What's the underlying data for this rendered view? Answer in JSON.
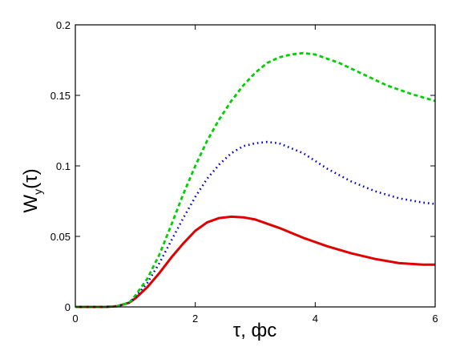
{
  "chart_data": {
    "type": "line",
    "xlabel": "τ, фс",
    "ylabel": "W",
    "ylabel_subscript": "y",
    "ylabel_suffix": "(τ)",
    "xlim": [
      0,
      6
    ],
    "ylim": [
      0,
      0.2
    ],
    "xticks": [
      0,
      2,
      4,
      6
    ],
    "xtick_labels": [
      "0",
      "2",
      "4",
      "6"
    ],
    "yticks": [
      0,
      0.05,
      0.1,
      0.15,
      0.2
    ],
    "ytick_labels": [
      "0",
      "0.05",
      "0.1",
      "0.15",
      "0.2"
    ],
    "grid": false,
    "legend": "none",
    "series": [
      {
        "style": "solid",
        "color": "#e00000",
        "x": [
          0,
          0.5,
          0.7,
          0.9,
          1.0,
          1.2,
          1.4,
          1.6,
          1.8,
          2.0,
          2.2,
          2.4,
          2.6,
          2.8,
          3.0,
          3.4,
          3.8,
          4.2,
          4.6,
          5.0,
          5.4,
          5.8,
          6.0
        ],
        "y": [
          0,
          0,
          0.0005,
          0.003,
          0.006,
          0.014,
          0.024,
          0.035,
          0.045,
          0.054,
          0.06,
          0.063,
          0.064,
          0.0635,
          0.062,
          0.056,
          0.049,
          0.043,
          0.038,
          0.034,
          0.031,
          0.03,
          0.03
        ]
      },
      {
        "style": "dotted",
        "color": "#0000d0",
        "x": [
          0,
          0.5,
          0.7,
          0.9,
          1.0,
          1.2,
          1.4,
          1.6,
          1.8,
          2.0,
          2.2,
          2.4,
          2.6,
          2.8,
          3.0,
          3.2,
          3.4,
          3.8,
          4.2,
          4.6,
          5.0,
          5.4,
          5.8,
          6.0
        ],
        "y": [
          0,
          0,
          0.0005,
          0.003,
          0.007,
          0.017,
          0.031,
          0.047,
          0.063,
          0.078,
          0.091,
          0.101,
          0.109,
          0.114,
          0.116,
          0.117,
          0.116,
          0.109,
          0.098,
          0.089,
          0.082,
          0.077,
          0.074,
          0.073
        ]
      },
      {
        "style": "dashed",
        "color": "#00d000",
        "x": [
          0,
          0.5,
          0.7,
          0.9,
          1.0,
          1.2,
          1.4,
          1.6,
          1.8,
          2.0,
          2.2,
          2.4,
          2.6,
          2.8,
          3.0,
          3.2,
          3.4,
          3.6,
          3.8,
          4.0,
          4.4,
          4.8,
          5.2,
          5.6,
          6.0
        ],
        "y": [
          0,
          0,
          0.0005,
          0.003,
          0.008,
          0.02,
          0.037,
          0.058,
          0.08,
          0.1,
          0.118,
          0.133,
          0.146,
          0.157,
          0.166,
          0.173,
          0.177,
          0.179,
          0.18,
          0.179,
          0.173,
          0.165,
          0.157,
          0.151,
          0.146
        ]
      }
    ]
  }
}
